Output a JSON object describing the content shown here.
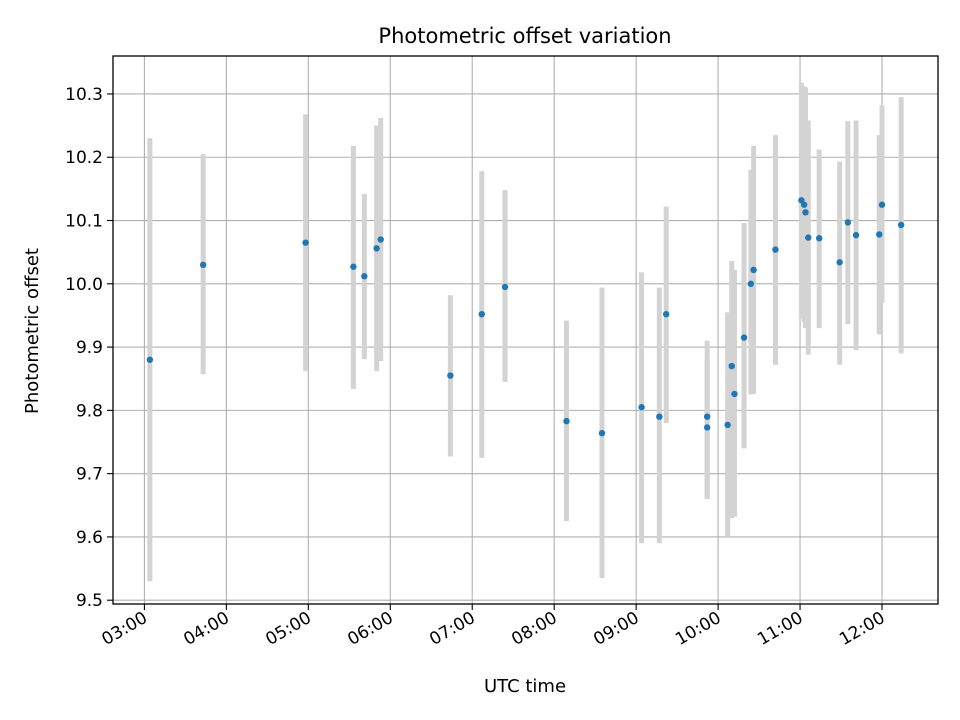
{
  "chart_data": {
    "type": "scatter",
    "title": "Photometric offset variation",
    "xlabel": "UTC time",
    "ylabel": "Photometric offset",
    "x_tick_labels": [
      "03:00",
      "04:00",
      "05:00",
      "06:00",
      "07:00",
      "08:00",
      "09:00",
      "10:00",
      "11:00",
      "12:00"
    ],
    "y_ticks": [
      9.5,
      9.6,
      9.7,
      9.8,
      9.9,
      10.0,
      10.1,
      10.2,
      10.3
    ],
    "y_tick_labels": [
      "9.5",
      "9.6",
      "9.7",
      "9.8",
      "9.9",
      "10.0",
      "10.1",
      "10.2",
      "10.3"
    ],
    "xlim": [
      "02:37",
      "12:41"
    ],
    "ylim": [
      9.494,
      10.36
    ],
    "grid": true,
    "marker_color": "#1f77b4",
    "errorbar_color": "#d3d3d3",
    "series": [
      {
        "x": [
          "03:04",
          "03:43",
          "04:58",
          "05:33",
          "05:41",
          "05:50",
          "05:53",
          "06:44",
          "07:07",
          "07:24",
          "08:09",
          "08:35",
          "09:04",
          "09:17",
          "09:22",
          "09:52",
          "09:52",
          "10:07",
          "10:10",
          "10:12",
          "10:19",
          "10:24",
          "10:26",
          "10:42",
          "11:01",
          "11:03",
          "11:04",
          "11:06",
          "11:14",
          "11:29",
          "11:35",
          "11:41",
          "11:58",
          "12:00",
          "12:14"
        ],
        "y": [
          9.88,
          10.03,
          10.065,
          10.027,
          10.012,
          10.056,
          10.07,
          9.855,
          9.952,
          9.995,
          9.783,
          9.764,
          9.805,
          9.79,
          9.952,
          9.79,
          9.773,
          9.777,
          9.87,
          9.826,
          9.915,
          10.0,
          10.022,
          10.054,
          10.132,
          10.125,
          10.113,
          10.073,
          10.072,
          10.034,
          10.097,
          10.077,
          10.078,
          10.125,
          10.093
        ],
        "y_lower": [
          9.53,
          9.857,
          9.862,
          9.834,
          9.881,
          9.862,
          9.878,
          9.727,
          9.725,
          9.845,
          9.625,
          9.535,
          9.59,
          9.59,
          9.78,
          9.66,
          9.66,
          9.6,
          9.63,
          9.632,
          9.74,
          9.825,
          9.826,
          9.872,
          9.945,
          9.94,
          9.93,
          9.888,
          9.93,
          9.872,
          9.936,
          9.895,
          9.92,
          9.97,
          9.89
        ],
        "y_upper": [
          10.23,
          10.205,
          10.268,
          10.218,
          10.142,
          10.25,
          10.262,
          9.982,
          10.178,
          10.148,
          9.942,
          9.994,
          10.018,
          9.994,
          10.122,
          9.91,
          9.88,
          9.955,
          10.036,
          10.022,
          10.096,
          10.18,
          10.218,
          10.235,
          10.318,
          10.312,
          10.31,
          10.258,
          10.212,
          10.193,
          10.257,
          10.258,
          10.235,
          10.282,
          10.295
        ]
      }
    ]
  }
}
